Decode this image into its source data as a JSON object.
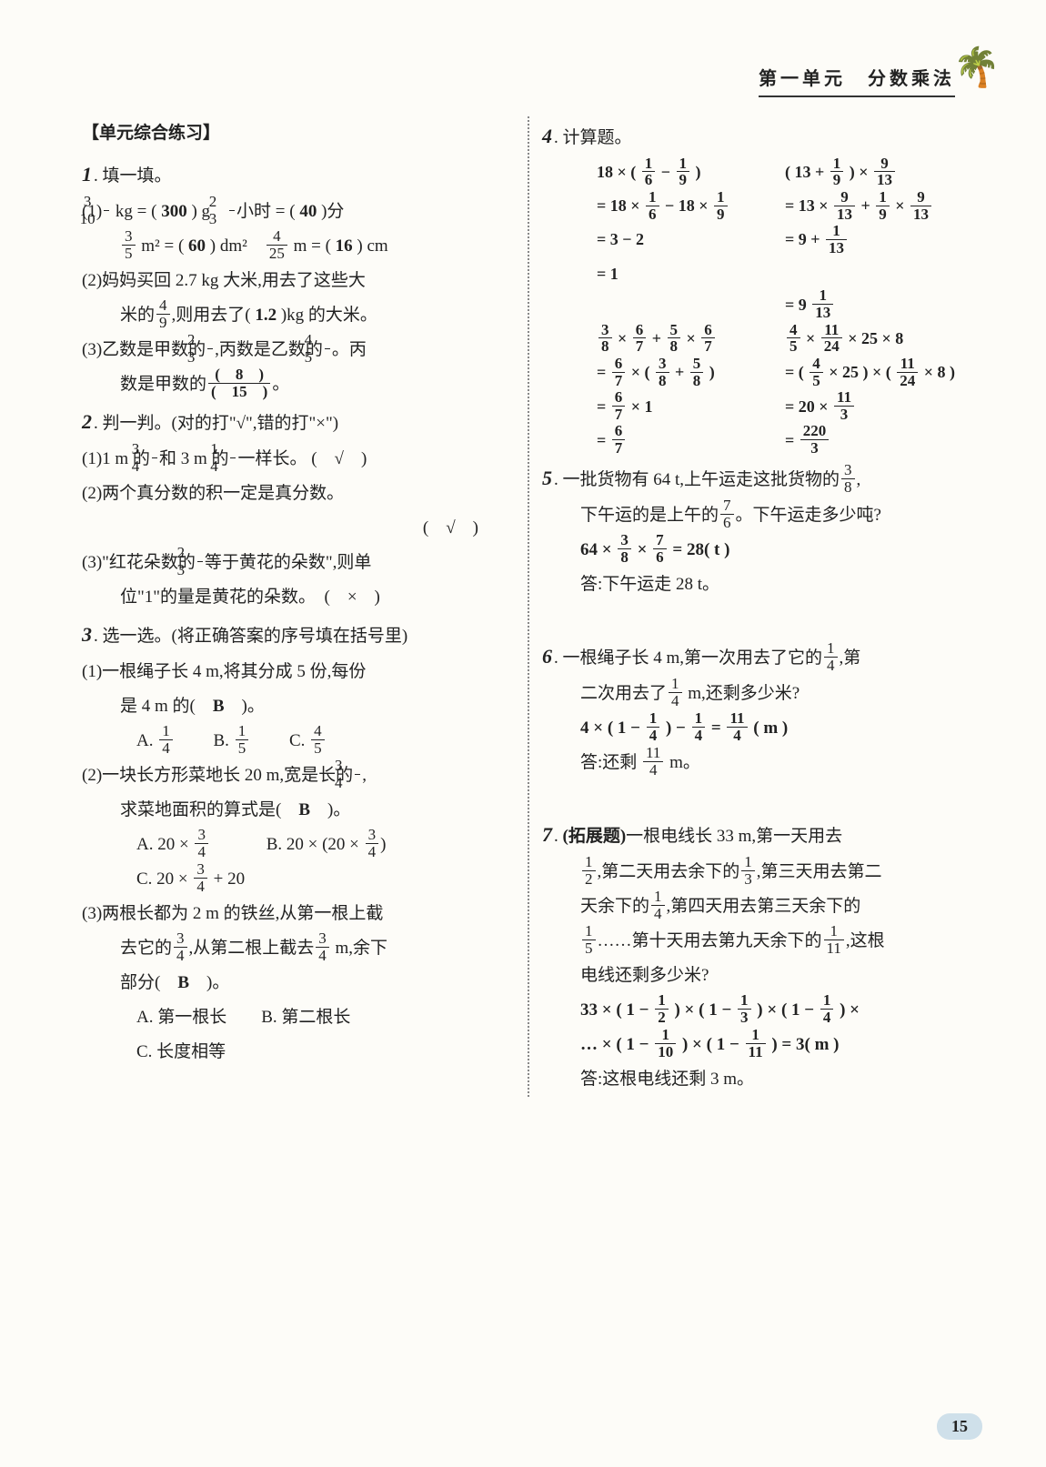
{
  "header": {
    "title": "第一单元　分数乘法"
  },
  "palm_icon": "🌴",
  "section_title": "【单元综合练习】",
  "q1": {
    "num": "1",
    "stem": ". 填一填。",
    "p1_a": "(1)",
    "p1_kg": " kg = ( ",
    "p1_v1": "300",
    "p1_g": " ) g　",
    "p1_hr": "小时 = ( ",
    "p1_v2": "40",
    "p1_min": " )分",
    "p1_m2": " m² = ( ",
    "p1_v3": "60",
    "p1_dm2": " ) dm²　",
    "p1_m": " m = ( ",
    "p1_v4": "16",
    "p1_cm": " ) cm",
    "p2_a": "(2)妈妈买回 2.7 kg 大米,用去了这些大",
    "p2_b": "米的",
    "p2_c": ",则用去了( ",
    "p2_v": "1.2",
    "p2_d": " )kg 的大米。",
    "p3_a": "(3)乙数是甲数的",
    "p3_b": ",丙数是乙数的",
    "p3_c": "。丙",
    "p3_d": "数是甲数的",
    "p3_e": "。",
    "f_3_10_n": "3",
    "f_3_10_d": "10",
    "f_2_3_n": "2",
    "f_2_3_d": "3",
    "f_3_5_n": "3",
    "f_3_5_d": "5",
    "f_4_25_n": "4",
    "f_4_25_d": "25",
    "f_4_9_n": "4",
    "f_4_9_d": "9",
    "f_4_5_n": "4",
    "f_4_5_d": "5",
    "f_8_15_n": "(　8　)",
    "f_8_15_d": "(　15　)"
  },
  "q2": {
    "num": "2",
    "stem": ". 判一判。(对的打\"√\",错的打\"×\")",
    "p1_a": "(1)1 m 的",
    "p1_b": "和 3 m 的",
    "p1_c": "一样长。 (　√　)",
    "p2": "(2)两个真分数的积一定是真分数。",
    "p2b": "(　√　)",
    "p3_a": "(3)\"红花朵数的",
    "p3_b": "等于黄花的朵数\",则单",
    "p3_c": "位\"1\"的量是黄花的朵数。　(　×　)",
    "f_3_4_n": "3",
    "f_3_4_d": "4",
    "f_1_4_n": "1",
    "f_1_4_d": "4",
    "f_2_3_n": "2",
    "f_2_3_d": "3"
  },
  "q3": {
    "num": "3",
    "stem": ". 选一选。(将正确答案的序号填在括号里)",
    "p1_a": "(1)一根绳子长 4 m,将其分成 5 份,每份",
    "p1_b": "是 4 m 的(　",
    "p1_v": "B",
    "p1_c": "　)。",
    "p1_optA": "A. ",
    "p1_optB": "B. ",
    "p1_optC": "C. ",
    "f_1_4_n": "1",
    "f_1_4_d": "4",
    "f_1_5_n": "1",
    "f_1_5_d": "5",
    "f_4_5_n": "4",
    "f_4_5_d": "5",
    "p2_a": "(2)一块长方形菜地长 20 m,宽是长的",
    "p2_b": ",",
    "p2_c": "求菜地面积的算式是(　",
    "p2_v": "B",
    "p2_d": "　)。",
    "p2_optA": "A. 20 × ",
    "p2_optB": "B. 20 × (20 × ",
    "p2_optB2": ")",
    "p2_optC": "C. 20 × ",
    "p2_optC2": " + 20",
    "f_3_4_n": "3",
    "f_3_4_d": "4",
    "p3_a": "(3)两根长都为 2 m 的铁丝,从第一根上截",
    "p3_b": "去它的",
    "p3_c": ",从第二根上截去",
    "p3_d": " m,余下",
    "p3_e": "部分(　",
    "p3_v": "B",
    "p3_f": "　)。",
    "p3_optA": "A. 第一根长",
    "p3_optB": "B. 第二根长",
    "p3_optC": "C. 长度相等"
  },
  "q4": {
    "num": "4",
    "stem": ". 计算题。",
    "calc": [
      [
        "18 × ( 1/6 − 1/9 )",
        "( 13 + 1/9 ) × 9/13"
      ],
      [
        "= 18 × 1/6 − 18 × 1/9",
        "= 13 × 9/13 + 1/9 × 9/13"
      ],
      [
        "= 3 − 2",
        "= 9 + 1/13"
      ],
      [
        "= 1",
        ""
      ],
      [
        "",
        "= 9 1/13"
      ],
      [
        "3/8 × 6/7 + 5/8 × 6/7",
        "4/5 × 11/24 × 25 × 8"
      ],
      [
        "= 6/7 × ( 3/8 + 5/8 )",
        "= ( 4/5 × 25 ) × ( 11/24 × 8 )"
      ],
      [
        "= 6/7 × 1",
        "= 20 × 11/3"
      ],
      [
        "= 6/7",
        "= 220/3"
      ]
    ]
  },
  "q5": {
    "num": "5",
    "stem_a": ". 一批货物有 64 t,上午运走这批货物的",
    "stem_b": ",",
    "stem_c": "下午运的是上午的",
    "stem_d": "。下午运走多少吨?",
    "work": "64 × 3/8 × 7/6 = 28( t )",
    "ans": "答:下午运走 28 t。",
    "f_3_8_n": "3",
    "f_3_8_d": "8",
    "f_7_6_n": "7",
    "f_7_6_d": "6"
  },
  "q6": {
    "num": "6",
    "stem_a": ". 一根绳子长 4 m,第一次用去了它的",
    "stem_b": ",第",
    "stem_c": "二次用去了",
    "stem_d": " m,还剩多少米?",
    "work": "4 × ( 1 − 1/4 ) − 1/4 = 11/4 ( m )",
    "ans": "答:还剩 11/4 m。",
    "f_1_4_n": "1",
    "f_1_4_d": "4"
  },
  "q7": {
    "num": "7",
    "tag": "(拓展题)",
    "stem_a": "一根电线长 33 m,第一天用去",
    "stem_b": ",第二天用去余下的",
    "stem_c": ",第三天用去第二",
    "stem_d": "天余下的",
    "stem_e": ",第四天用去第三天余下的",
    "stem_f": "……第十天用去第九天余下的",
    "stem_g": ",这根",
    "stem_h": "电线还剩多少米?",
    "work1": "33 × ( 1 − 1/2 ) × ( 1 − 1/3 ) × ( 1 − 1/4 ) ×",
    "work2": "… × ( 1 − 1/10 ) × ( 1 − 1/11 ) = 3( m )",
    "ans": "答:这根电线还剩 3 m。",
    "f_1_2_n": "1",
    "f_1_2_d": "2",
    "f_1_3_n": "1",
    "f_1_3_d": "3",
    "f_1_4_n": "1",
    "f_1_4_d": "4",
    "f_1_5_n": "1",
    "f_1_5_d": "5",
    "f_1_11_n": "1",
    "f_1_11_d": "11"
  },
  "pagenum": "15"
}
